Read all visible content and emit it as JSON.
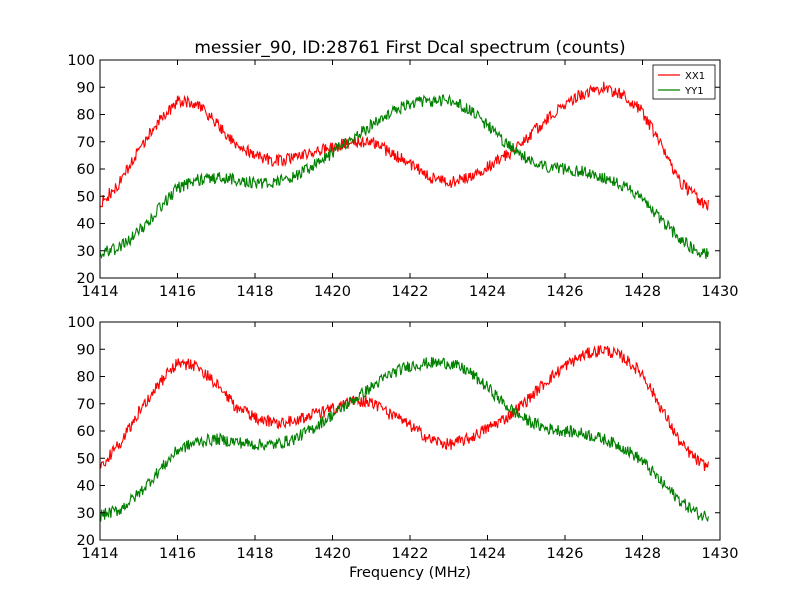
{
  "figure": {
    "title": "messier_90, ID:28761 First Dcal spectrum (counts)",
    "xlabel": "Frequency (MHz)"
  },
  "legend": {
    "entries": [
      {
        "label": "XX1",
        "color": "#ff0000"
      },
      {
        "label": "YY1",
        "color": "#008000"
      }
    ],
    "placement": "top-right"
  },
  "chart_data": [
    {
      "type": "line",
      "title": "messier_90, ID:28761 First Dcal spectrum (counts)",
      "xlabel": "",
      "ylabel": "",
      "xlim": [
        1414,
        1430
      ],
      "ylim": [
        20,
        100
      ],
      "xticks": [
        "1414",
        "1416",
        "1418",
        "1420",
        "1422",
        "1424",
        "1426",
        "1428",
        "1430"
      ],
      "yticks": [
        "20",
        "30",
        "40",
        "50",
        "60",
        "70",
        "80",
        "90",
        "100"
      ],
      "grid": false,
      "legend": "top-right",
      "noise": 2.2,
      "series": [
        {
          "name": "XX1",
          "color": "#ff0000",
          "x": [
            1414.0,
            1414.5,
            1415.0,
            1415.5,
            1416.0,
            1416.5,
            1417.0,
            1417.5,
            1418.0,
            1418.5,
            1419.0,
            1419.5,
            1420.0,
            1420.5,
            1421.0,
            1421.5,
            1422.0,
            1422.5,
            1423.0,
            1423.5,
            1424.0,
            1424.5,
            1425.0,
            1425.5,
            1426.0,
            1426.5,
            1427.0,
            1427.5,
            1428.0,
            1428.5,
            1429.0,
            1429.5,
            1429.7
          ],
          "y": [
            47,
            55,
            67,
            77,
            85,
            84,
            77,
            69,
            65,
            63,
            64,
            66,
            68,
            70,
            70,
            66,
            62,
            57,
            55,
            57,
            61,
            65,
            71,
            78,
            84,
            88,
            90,
            87,
            81,
            68,
            55,
            48,
            47
          ]
        },
        {
          "name": "YY1",
          "color": "#008000",
          "x": [
            1414.0,
            1414.5,
            1415.0,
            1415.5,
            1416.0,
            1416.5,
            1417.0,
            1417.5,
            1418.0,
            1418.5,
            1419.0,
            1419.5,
            1420.0,
            1420.5,
            1421.0,
            1421.5,
            1422.0,
            1422.5,
            1423.0,
            1423.5,
            1424.0,
            1424.5,
            1425.0,
            1425.5,
            1426.0,
            1426.5,
            1427.0,
            1427.5,
            1428.0,
            1428.5,
            1429.0,
            1429.5,
            1429.7
          ],
          "y": [
            29,
            31,
            37,
            45,
            53,
            56,
            57,
            56,
            55,
            55,
            57,
            61,
            66,
            71,
            76,
            81,
            84,
            85,
            85,
            82,
            76,
            69,
            64,
            61,
            60,
            59,
            57,
            54,
            49,
            41,
            34,
            29,
            29
          ]
        }
      ]
    },
    {
      "type": "line",
      "title": "",
      "xlabel": "Frequency (MHz)",
      "ylabel": "",
      "xlim": [
        1414,
        1430
      ],
      "ylim": [
        20,
        100
      ],
      "xticks": [
        "1414",
        "1416",
        "1418",
        "1420",
        "1422",
        "1424",
        "1426",
        "1428",
        "1430"
      ],
      "yticks": [
        "20",
        "30",
        "40",
        "50",
        "60",
        "70",
        "80",
        "90",
        "100"
      ],
      "grid": false,
      "legend": "none",
      "noise": 2.2,
      "series": [
        {
          "name": "XX1",
          "color": "#ff0000",
          "x": [
            1414.0,
            1414.5,
            1415.0,
            1415.5,
            1416.0,
            1416.5,
            1417.0,
            1417.5,
            1418.0,
            1418.5,
            1419.0,
            1419.5,
            1420.0,
            1420.5,
            1421.0,
            1421.5,
            1422.0,
            1422.5,
            1423.0,
            1423.5,
            1424.0,
            1424.5,
            1425.0,
            1425.5,
            1426.0,
            1426.5,
            1427.0,
            1427.5,
            1428.0,
            1428.5,
            1429.0,
            1429.5,
            1429.7
          ],
          "y": [
            47,
            55,
            67,
            77,
            85,
            84,
            77,
            69,
            65,
            63,
            64,
            66,
            68,
            71,
            71,
            66,
            62,
            57,
            55,
            57,
            61,
            65,
            71,
            78,
            84,
            88,
            90,
            87,
            81,
            68,
            55,
            48,
            47
          ]
        },
        {
          "name": "YY1",
          "color": "#008000",
          "x": [
            1414.0,
            1414.5,
            1415.0,
            1415.5,
            1416.0,
            1416.5,
            1417.0,
            1417.5,
            1418.0,
            1418.5,
            1419.0,
            1419.5,
            1420.0,
            1420.5,
            1421.0,
            1421.5,
            1422.0,
            1422.5,
            1423.0,
            1423.5,
            1424.0,
            1424.5,
            1425.0,
            1425.5,
            1426.0,
            1426.5,
            1427.0,
            1427.5,
            1428.0,
            1428.5,
            1429.0,
            1429.5,
            1429.7
          ],
          "y": [
            29,
            31,
            37,
            45,
            53,
            56,
            57,
            56,
            55,
            55,
            57,
            61,
            66,
            71,
            76,
            81,
            84,
            85,
            85,
            82,
            76,
            69,
            64,
            61,
            60,
            59,
            57,
            54,
            49,
            41,
            34,
            29,
            29
          ]
        }
      ]
    }
  ]
}
